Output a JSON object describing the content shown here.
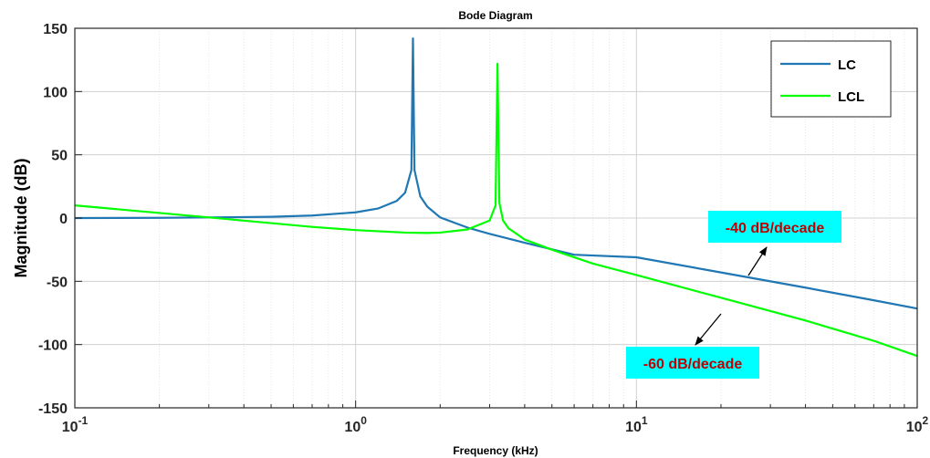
{
  "chart_data": {
    "type": "line",
    "title": "Bode Diagram",
    "xlabel": "Frequency  (kHz)",
    "ylabel": "Magnitude (dB)",
    "xscale": "log",
    "xlim": [
      0.1,
      100
    ],
    "ylim": [
      -150,
      150
    ],
    "yticks": [
      150,
      100,
      50,
      0,
      -50,
      -100,
      -150
    ],
    "ytick_labels": [
      "150",
      "100",
      "50",
      "0",
      "-50",
      "-100",
      "-150"
    ],
    "xtick_labels": [
      {
        "base": "10",
        "exp": "-1"
      },
      {
        "base": "10",
        "exp": "0"
      },
      {
        "base": "10",
        "exp": "1"
      },
      {
        "base": "10",
        "exp": "2"
      }
    ],
    "grid": true,
    "legend_position": "top-right",
    "series": [
      {
        "name": "LC",
        "color": "#1f77b4",
        "x": [
          0.1,
          0.2,
          0.3,
          0.5,
          0.7,
          1.0,
          1.2,
          1.4,
          1.5,
          1.58,
          1.6,
          1.62,
          1.7,
          1.8,
          2.0,
          2.5,
          3.0,
          4.0,
          6.0,
          10,
          20,
          40,
          70,
          100
        ],
        "y": [
          0.0,
          0.2,
          0.5,
          1.0,
          2.0,
          4.5,
          7.5,
          13.5,
          20.0,
          38.0,
          142.0,
          38.0,
          17.0,
          9.0,
          0.5,
          -7.5,
          -12.5,
          -19.5,
          -29.0,
          -31.0,
          -43.0,
          -55.0,
          -65.0,
          -71.5
        ]
      },
      {
        "name": "LCL",
        "color": "#00ff00",
        "x": [
          0.1,
          0.2,
          0.3,
          0.5,
          0.7,
          1.0,
          1.5,
          1.8,
          2.0,
          2.5,
          3.0,
          3.15,
          3.2,
          3.25,
          3.35,
          3.5,
          4.0,
          5.0,
          7.0,
          10,
          20,
          40,
          70,
          100
        ],
        "y": [
          10.0,
          4.0,
          0.5,
          -4.0,
          -7.0,
          -9.5,
          -11.5,
          -11.8,
          -11.5,
          -9.0,
          -2.0,
          10.0,
          122.0,
          12.0,
          -2.0,
          -8.0,
          -17.0,
          -25.0,
          -36.0,
          -45.0,
          -63.0,
          -81.0,
          -97.0,
          -109.0
        ]
      }
    ],
    "annotations": [
      {
        "text": "-40 dB/decade",
        "text_color": "#c00000",
        "box_color": "#00ffff"
      },
      {
        "text": "-60 dB/decade",
        "text_color": "#c00000",
        "box_color": "#00ffff"
      }
    ]
  }
}
